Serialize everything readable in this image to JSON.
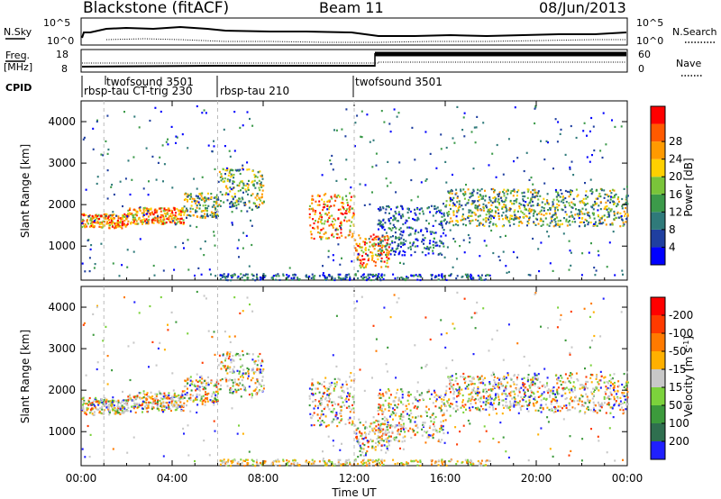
{
  "header": {
    "station": "Blackstone (fitACF)",
    "beam": "Beam 11",
    "date": "08/Jun/2013"
  },
  "noise_panel": {
    "left_label": "N.Sky",
    "right_label": "N.Search",
    "left_ticks": [
      "10^5",
      "10^0"
    ],
    "right_ticks": [
      "10^5",
      "10^0"
    ]
  },
  "freq_panel": {
    "left_label_1": "Freq.",
    "left_label_2": "[MHz]",
    "left_ticks": [
      "18",
      "8"
    ],
    "right_label": "Nave",
    "right_ticks": [
      "60",
      "0"
    ]
  },
  "cpid_panel": {
    "label": "CPID",
    "programs": [
      {
        "name": "twofsound 3501",
        "start_hour": 1.0
      },
      {
        "name": "rbsp-tau CT-trig 230",
        "start_hour": 0.0
      },
      {
        "name": "rbsp-tau 210",
        "start_hour": 6.0
      },
      {
        "name": "twofsound 3501",
        "start_hour": 12.0
      }
    ]
  },
  "x_axis": {
    "label": "Time UT",
    "ticks": [
      "00:00",
      "04:00",
      "08:00",
      "12:00",
      "16:00",
      "20:00",
      "00:00"
    ],
    "range_hours": [
      0,
      24
    ]
  },
  "range_axis": {
    "label": "Slant Range [km]",
    "ticks": [
      "1000",
      "2000",
      "3000",
      "4000"
    ],
    "range_km": [
      180,
      4500
    ]
  },
  "power_colorbar": {
    "label": "Power [dB]",
    "ticks": [
      "4",
      "8",
      "12",
      "16",
      "20",
      "24",
      "28"
    ],
    "colors": [
      "#0000ff",
      "#1f3fa0",
      "#2f7a7a",
      "#3c9a4a",
      "#7ac43a",
      "#ffd000",
      "#ff9a00",
      "#ff5a00",
      "#ff0000"
    ]
  },
  "velocity_colorbar": {
    "label": "Velocity [m s^-1]",
    "label_main": "Velocity [m s",
    "label_exp": "-1",
    "label_end": "]",
    "ticks": [
      "200",
      "100",
      "50",
      "15",
      "-15",
      "-50",
      "-100",
      "-200"
    ],
    "colors": [
      "#2020ff",
      "#2f6f4f",
      "#3c9a3c",
      "#7cd23c",
      "#c8c8c8",
      "#ffb000",
      "#ff7a00",
      "#ff3a00",
      "#ff0000"
    ]
  },
  "chart_data": {
    "type": "heatmap",
    "title": "Blackstone (fitACF)",
    "xlabel": "Time UT",
    "ylabel": "Slant Range [km]",
    "xlim_hours": [
      0,
      24
    ],
    "ylim_km": [
      180,
      4500
    ],
    "power_scatter_bands": [
      {
        "t0": 0.0,
        "t1": 2.0,
        "r0": 1450,
        "r1": 1800,
        "level": "high"
      },
      {
        "t0": 2.0,
        "t1": 4.5,
        "r0": 1550,
        "r1": 1950,
        "level": "high"
      },
      {
        "t0": 4.5,
        "t1": 6.0,
        "r0": 1700,
        "r1": 2300,
        "level": "medium"
      },
      {
        "t0": 6.0,
        "t1": 8.0,
        "r0": 1900,
        "r1": 2900,
        "level": "medium"
      },
      {
        "t0": 10.0,
        "t1": 12.0,
        "r0": 1200,
        "r1": 2300,
        "level": "high"
      },
      {
        "t0": 12.0,
        "t1": 13.5,
        "r0": 500,
        "r1": 1300,
        "level": "high"
      },
      {
        "t0": 13.0,
        "t1": 16.0,
        "r0": 800,
        "r1": 2000,
        "level": "low"
      },
      {
        "t0": 16.0,
        "t1": 24.0,
        "r0": 1500,
        "r1": 2400,
        "level": "medium"
      }
    ]
  }
}
